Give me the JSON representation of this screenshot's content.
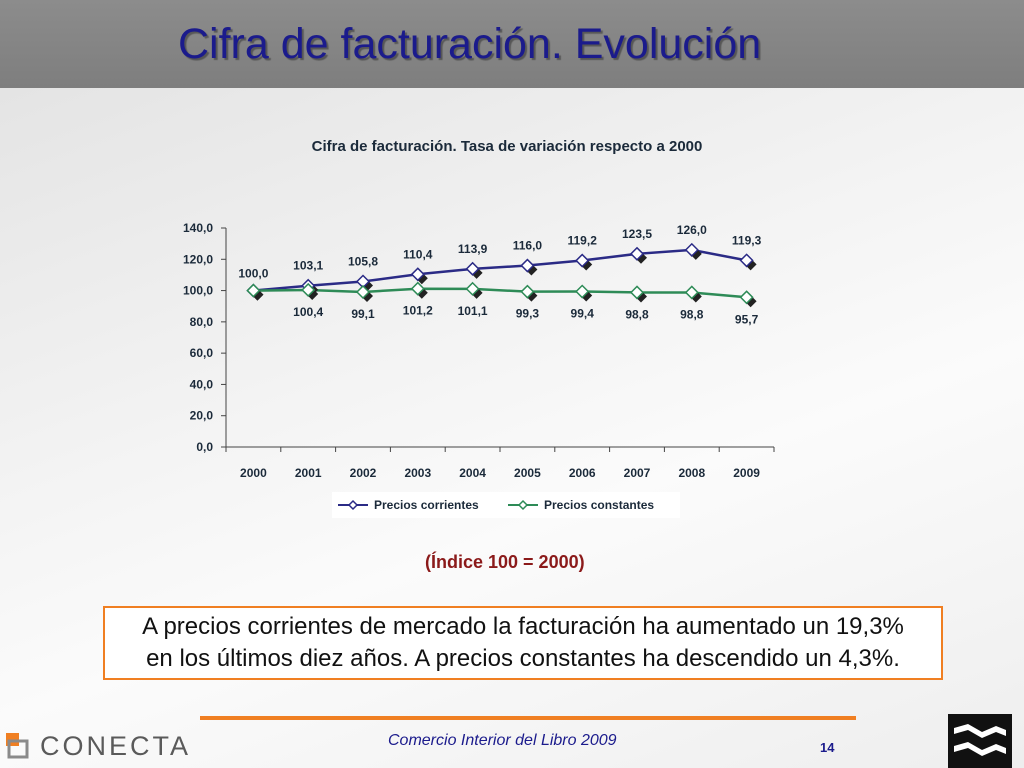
{
  "slide": {
    "title": "Cifra de facturación. Evolución",
    "index_note": "(Índice 100 = 2000)",
    "callout_line1": "A precios corrientes de mercado la facturación ha aumentado un 19,3%",
    "callout_line2": "en los últimos diez años. A precios constantes ha descendido un 4,3%.",
    "footer_text": "Comercio Interior del Libro 2009",
    "page_number": "14",
    "logo_text": "CONECTA",
    "logo_icon": "conecta-square-icon",
    "corner_icon": "chevron-mark-icon",
    "colors": {
      "title_text": "#1b1b8c",
      "title_bar": "#858585",
      "accent_orange": "#f07f22",
      "note_red": "#8b1a1a"
    }
  },
  "chart_data": {
    "type": "line",
    "title": "Cifra de facturación. Tasa de variación respecto a 2000",
    "categories": [
      "2000",
      "2001",
      "2002",
      "2003",
      "2004",
      "2005",
      "2006",
      "2007",
      "2008",
      "2009"
    ],
    "y_ticks": [
      "0,0",
      "20,0",
      "40,0",
      "60,0",
      "80,0",
      "100,0",
      "120,0",
      "140,0"
    ],
    "ylim": [
      0,
      140
    ],
    "grid": false,
    "legend_position": "bottom",
    "series": [
      {
        "name": "Precios corrientes",
        "color": "#2b2b86",
        "marker": "diamond",
        "values": [
          100.0,
          103.1,
          105.8,
          110.4,
          113.9,
          116.0,
          119.2,
          123.5,
          126.0,
          119.3
        ],
        "labels": [
          "100,0",
          "103,1",
          "105,8",
          "110,4",
          "113,9",
          "116,0",
          "119,2",
          "123,5",
          "126,0",
          "119,3"
        ]
      },
      {
        "name": "Precios constantes",
        "color": "#2e8b57",
        "marker": "diamond",
        "values": [
          100.0,
          100.4,
          99.1,
          101.2,
          101.1,
          99.3,
          99.4,
          98.8,
          98.8,
          95.7
        ],
        "labels": [
          "",
          "100,4",
          "99,1",
          "101,2",
          "101,1",
          "99,3",
          "99,4",
          "98,8",
          "98,8",
          "95,7"
        ]
      }
    ]
  }
}
